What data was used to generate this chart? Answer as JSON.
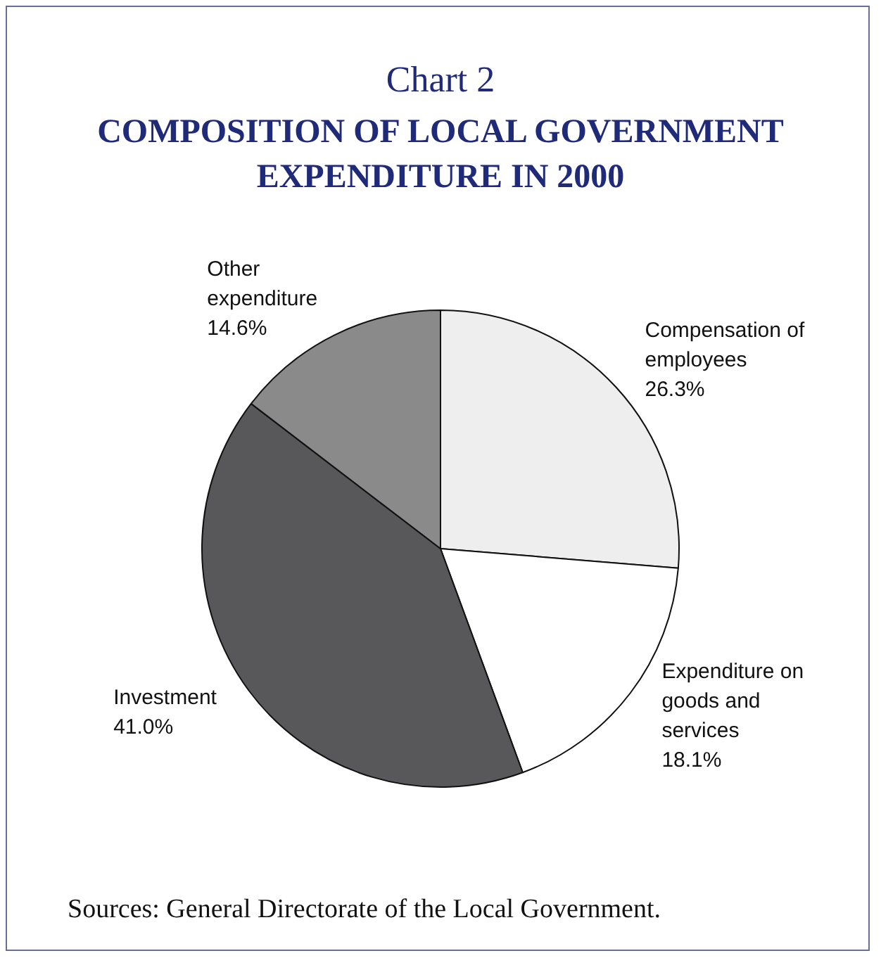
{
  "chart_data": {
    "type": "pie",
    "title": "Chart 2",
    "subtitle": "COMPOSITION OF LOCAL GOVERNMENT EXPENDITURE IN 2000",
    "categories": [
      "Compensation of employees",
      "Expenditure on goods and services",
      "Investment",
      "Other expenditure"
    ],
    "values": [
      26.3,
      18.1,
      41.0,
      14.6
    ],
    "value_labels": [
      "26.3%",
      "18.1%",
      "41.0%",
      "14.6%"
    ],
    "colors": [
      "#eeeeee",
      "#ffffff",
      "#58585a",
      "#8a8a8a"
    ],
    "annotations": [
      "Sources: General Directorate of the Local Government."
    ]
  }
}
